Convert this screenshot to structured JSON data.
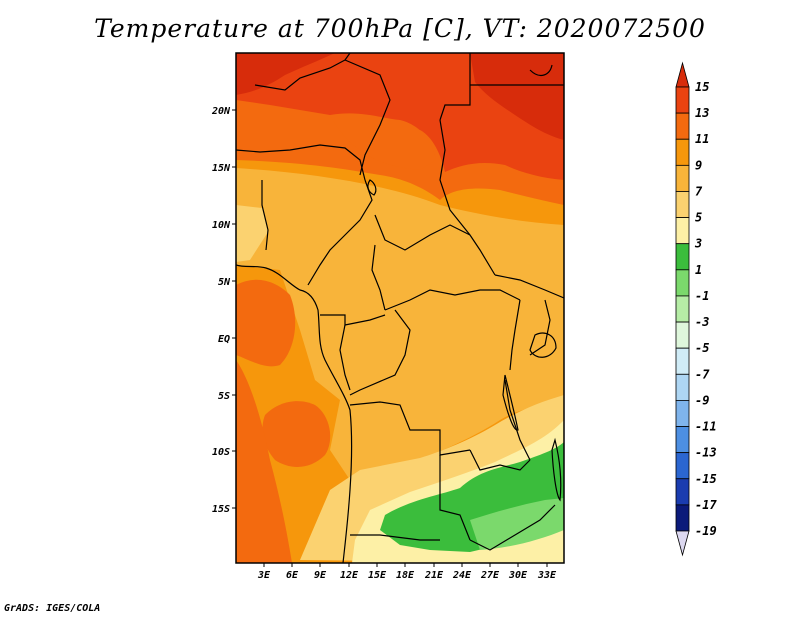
{
  "title": "Temperature at 700hPa [C], VT: 2020072500",
  "credit": "GrADS: IGES/COLA",
  "axes": {
    "lat_ticks": [
      "20N",
      "15N",
      "10N",
      "5N",
      "EQ",
      "5S",
      "10S",
      "15S"
    ],
    "lon_ticks": [
      "3E",
      "6E",
      "9E",
      "12E",
      "15E",
      "18E",
      "21E",
      "24E",
      "27E",
      "30E",
      "33E"
    ]
  },
  "colorbar": {
    "labels": [
      "15",
      "13",
      "11",
      "9",
      "7",
      "5",
      "3",
      "1",
      "-1",
      "-3",
      "-5",
      "-7",
      "-9",
      "-11",
      "-13",
      "-15",
      "-17",
      "-19"
    ],
    "colors": [
      "#d72c0b",
      "#ea4311",
      "#f36a0f",
      "#f6970c",
      "#f8b43a",
      "#fbd270",
      "#fdf0a6",
      "#3bbd3c",
      "#7bd96c",
      "#b6eda6",
      "#dff7dc",
      "#d0ecf7",
      "#aed6f3",
      "#7fb4ec",
      "#4d8fe2",
      "#2b66d1",
      "#1a3cb0",
      "#0b1a7a",
      "#dcd8f0"
    ]
  },
  "map": {
    "field_colors": {
      "deep_red": "#d72c0b",
      "red": "#ea4311",
      "orange_red": "#f36a0f",
      "orange": "#f6970c",
      "light_orange": "#f8b43a",
      "pale_orange": "#fbd270",
      "pale_yellow": "#fdf0a6",
      "green": "#3bbd3c",
      "light_green": "#7bd96c"
    }
  }
}
